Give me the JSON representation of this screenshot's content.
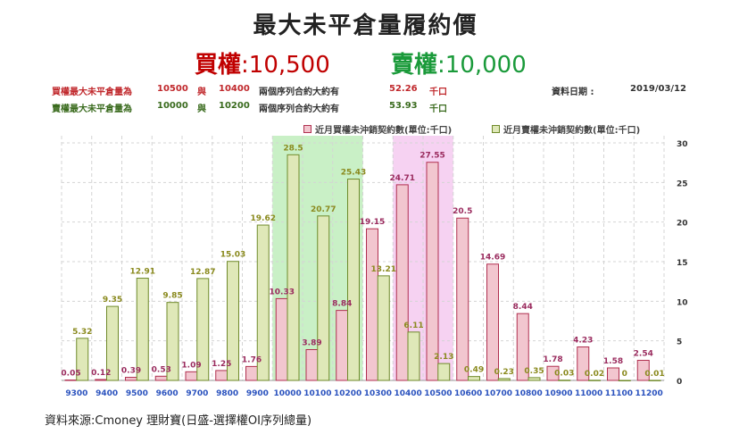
{
  "header": {
    "title": "最大未平倉量履約價",
    "call_label": "買權",
    "call_value": ":10,500",
    "put_label": "賣權",
    "put_value": ":10,000"
  },
  "info": {
    "call_row": {
      "prefix": "買權最大未平倉量為",
      "strike1": "10500",
      "conj": "與",
      "strike2": "10400",
      "desc": "兩個序列合約大約有",
      "amount": "52.26",
      "unit": "千口"
    },
    "put_row": {
      "prefix": "賣權最大未平倉量為",
      "strike1": "10000",
      "conj": "與",
      "strike2": "10200",
      "desc": "兩個序列合約大約有",
      "amount": "53.93",
      "unit": "千口"
    },
    "date_label": "資料日期 :",
    "date_value": "2019/03/12"
  },
  "source": "資料來源:Cmoney 理財寶(日盛-選擇權OI序列總量)",
  "colors": {
    "call_fill": "#f2c6cf",
    "call_stroke": "#b03050",
    "put_fill": "#dfe8b8",
    "put_stroke": "#6f8a2a",
    "call_text": "#c0282c",
    "put_text": "#1a9a3a",
    "highlight_green": "#c9f0c6",
    "highlight_pink": "#f6d2f2",
    "tick_blue": "#2a52be"
  },
  "chart_data": {
    "type": "bar",
    "categories": [
      "9300",
      "9400",
      "9500",
      "9600",
      "9700",
      "9800",
      "9900",
      "10000",
      "10100",
      "10200",
      "10300",
      "10400",
      "10500",
      "10600",
      "10700",
      "10800",
      "10900",
      "11000",
      "11100",
      "11200"
    ],
    "series": [
      {
        "name": "近月買權未沖銷契約數(單位:千口)",
        "values": [
          0.05,
          0.12,
          0.39,
          0.53,
          1.09,
          1.25,
          1.76,
          10.33,
          3.89,
          8.84,
          19.15,
          24.71,
          27.55,
          20.5,
          14.69,
          8.44,
          1.78,
          4.23,
          1.58,
          2.54
        ]
      },
      {
        "name": "近月賣權未沖銷契約數(單位:千口)",
        "values": [
          5.32,
          9.35,
          12.91,
          9.85,
          12.87,
          15.03,
          19.62,
          28.5,
          20.77,
          25.43,
          13.21,
          6.11,
          2.13,
          0.49,
          0.23,
          0.35,
          0.03,
          0.02,
          0,
          0.01
        ]
      }
    ],
    "value_labels": {
      "call": [
        "0.05",
        "0.12",
        "0.39",
        "0.53",
        "1.09",
        "1.25",
        "1.76",
        "10.33",
        "3.89",
        "8.84",
        "19.15",
        "24.71",
        "27.55",
        "20.5",
        "14.69",
        "8.44",
        "1.78",
        "4.23",
        "1.58",
        "2.54"
      ],
      "put": [
        "5.32",
        "9.35",
        "12.91",
        "9.85",
        "12.87",
        "15.03",
        "19.62",
        "28.5",
        "20.77",
        "25.43",
        "13.21",
        "6.11",
        "2.13",
        "0.49",
        "0.23",
        "0.35",
        "0.03",
        "0.02",
        "0",
        "0.01"
      ]
    },
    "highlight_put_range": [
      "10000",
      "10200"
    ],
    "highlight_call_range": [
      "10400",
      "10500"
    ],
    "ylim": [
      0,
      30
    ],
    "yticks": [
      "0",
      "5",
      "10",
      "15",
      "20",
      "25",
      "30"
    ],
    "grid": true,
    "legend": "top-right"
  }
}
